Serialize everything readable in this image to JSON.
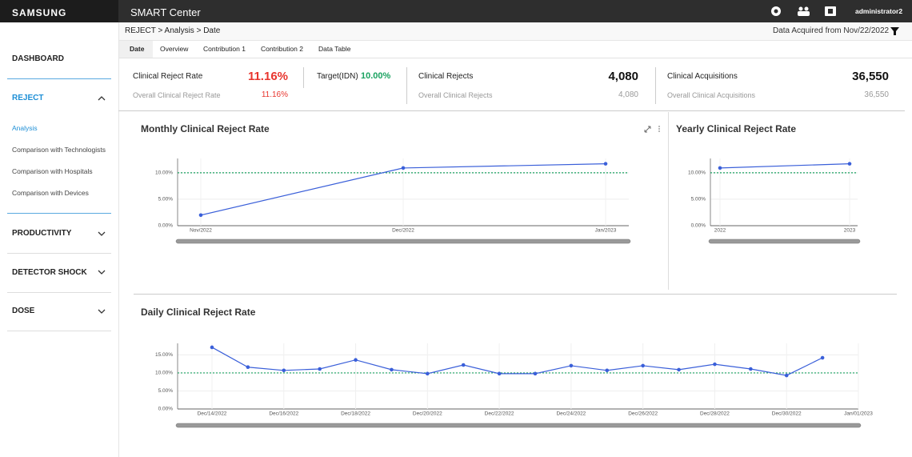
{
  "header": {
    "brand": "SAMSUNG",
    "app": "SMART Center",
    "user": "administrator2"
  },
  "sidebar": [
    {
      "label": "DASHBOARD"
    },
    {
      "label": "REJECT",
      "children": [
        "Analysis",
        "Comparison with Technologists",
        "Comparison with Hospitals",
        "Comparison with Devices"
      ]
    },
    {
      "label": "PRODUCTIVITY"
    },
    {
      "label": "DETECTOR SHOCK"
    },
    {
      "label": "DOSE"
    }
  ],
  "breadcrumb": "REJECT > Analysis > Date",
  "acquired": "Data Acquired from Nov/22/2022",
  "tabs": [
    "Date",
    "Overview",
    "Contribution 1",
    "Contribution 2",
    "Data Table"
  ],
  "kpis": [
    {
      "label": "Clinical Reject Rate",
      "value": "11.16%",
      "sub_label": "Overall Clinical Reject Rate",
      "sub_value": "11.16%"
    },
    {
      "label": "Target(IDN)",
      "value": "10.00%"
    },
    {
      "label": "Clinical Rejects",
      "value": "4,080",
      "sub_label": "Overall Clinical Rejects",
      "sub_value": "4,080"
    },
    {
      "label": "Clinical Acquisitions",
      "value": "36,550",
      "sub_label": "Overall Clinical Acquisitions",
      "sub_value": "36,550"
    }
  ],
  "chart_data": [
    {
      "type": "line",
      "title": "Monthly Clinical Reject Rate",
      "categories": [
        "Nov/2022",
        "Dec/2022",
        "Jan/2023"
      ],
      "values": [
        2.0,
        10.9,
        11.7
      ],
      "color": "#3a5fd9",
      "target": 10,
      "target_color": "#1aa260",
      "ylim": [
        0,
        12.7
      ],
      "yticks": [
        {
          "value": 0,
          "label": "0.00%"
        },
        {
          "value": 5,
          "label": "5.00%"
        },
        {
          "value": 10,
          "label": "10.00%"
        }
      ]
    },
    {
      "type": "line",
      "title": "Yearly Clinical Reject Rate",
      "categories": [
        "2022",
        "2023"
      ],
      "values": [
        10.9,
        11.7
      ],
      "color": "#3a5fd9",
      "target": 10,
      "target_color": "#1aa260",
      "ylim": [
        0,
        12.7
      ],
      "yticks": [
        {
          "value": 0,
          "label": "0.00%"
        },
        {
          "value": 5,
          "label": "5.00%"
        },
        {
          "value": 10,
          "label": "10.00%"
        }
      ]
    },
    {
      "type": "line",
      "title": "Daily Clinical Reject Rate",
      "categories": [
        "Dec/14/2022",
        null,
        "Dec/16/2022",
        null,
        "Dec/18/2022",
        null,
        "Dec/20/2022",
        null,
        "Dec/22/2022",
        null,
        "Dec/24/2022",
        null,
        "Dec/26/2022",
        null,
        "Dec/28/2022",
        null,
        "Dec/30/2022",
        null,
        "Jan/01/2023"
      ],
      "values": [
        17.1,
        11.6,
        10.7,
        11.1,
        13.6,
        10.9,
        9.8,
        12.2,
        9.8,
        9.8,
        12.0,
        10.7,
        12.0,
        10.9,
        12.4,
        11.1,
        9.3,
        14.2,
        null
      ],
      "color": "#3a5fd9",
      "target": 10,
      "target_color": "#1aa260",
      "ylim": [
        0,
        18.2
      ],
      "yticks": [
        {
          "value": 0,
          "label": "0.00%"
        },
        {
          "value": 5,
          "label": "5.00%"
        },
        {
          "value": 10,
          "label": "10.00%"
        },
        {
          "value": 15,
          "label": "15.00%"
        }
      ]
    }
  ]
}
